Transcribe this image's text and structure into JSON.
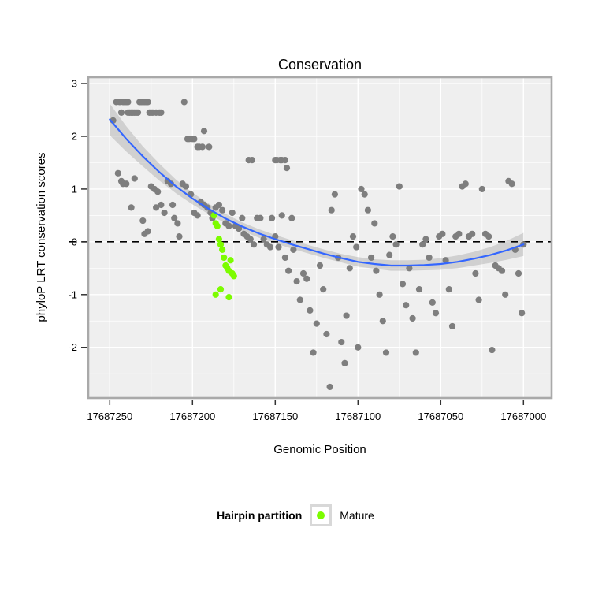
{
  "legend": {
    "title": "Hairpin partition",
    "entries": [
      {
        "label": "Mature",
        "color": "#7cfc00"
      }
    ]
  },
  "chart_data": {
    "type": "scatter",
    "title": "Conservation",
    "xlabel": "Genomic Position",
    "ylabel": "phyloP LRT conservation scores",
    "x_reversed": true,
    "grid": true,
    "xlim": [
      17687263,
      17686983
    ],
    "ylim": [
      -2.96,
      3.12
    ],
    "x_ticks": [
      17687250,
      17687200,
      17687150,
      17687100,
      17687050,
      17687000
    ],
    "x_tick_labels": [
      "17687250",
      "17687200",
      "17687150",
      "17687100",
      "17687050",
      "17687000"
    ],
    "x_minor": [
      17687225,
      17687175,
      17687125,
      17687075,
      17687025
    ],
    "y_ticks": [
      3,
      2,
      1,
      0,
      -1,
      -2
    ],
    "y_tick_labels": [
      "3",
      "2",
      "1",
      "0",
      "-1",
      "-2"
    ],
    "y_minor": [
      2.5,
      1.5,
      0.5,
      -0.5,
      -1.5,
      -2.5
    ],
    "reference_line": {
      "y": 0,
      "style": "dashed",
      "color": "#000000"
    },
    "colors": {
      "panel_bg": "#efefef",
      "grid": "#ffffff",
      "border": "#a9a9a9",
      "band": "#9e9e9e",
      "line": "#3366ff",
      "point_gray": "#7e7e7e",
      "point_green": "#7cfc00"
    },
    "series": [
      {
        "name": "hairpin",
        "label": "",
        "color": "#7e7e7e",
        "points": [
          [
            17687246,
            2.65
          ],
          [
            17687244,
            2.65
          ],
          [
            17687242,
            2.65
          ],
          [
            17687241,
            2.65
          ],
          [
            17687240,
            2.65
          ],
          [
            17687239,
            2.65
          ],
          [
            17687232,
            2.65
          ],
          [
            17687231,
            2.65
          ],
          [
            17687230,
            2.65
          ],
          [
            17687229,
            2.65
          ],
          [
            17687228,
            2.65
          ],
          [
            17687227,
            2.65
          ],
          [
            17687205,
            2.65
          ],
          [
            17687243,
            2.45
          ],
          [
            17687239,
            2.45
          ],
          [
            17687238,
            2.45
          ],
          [
            17687237,
            2.45
          ],
          [
            17687236,
            2.45
          ],
          [
            17687235,
            2.45
          ],
          [
            17687234,
            2.45
          ],
          [
            17687233,
            2.45
          ],
          [
            17687226,
            2.45
          ],
          [
            17687225,
            2.45
          ],
          [
            17687224,
            2.45
          ],
          [
            17687222,
            2.45
          ],
          [
            17687220,
            2.45
          ],
          [
            17687219,
            2.45
          ],
          [
            17687248,
            2.3
          ],
          [
            17687245,
            1.3
          ],
          [
            17687243,
            1.15
          ],
          [
            17687242,
            1.1
          ],
          [
            17687240,
            1.1
          ],
          [
            17687237,
            0.65
          ],
          [
            17687235,
            1.2
          ],
          [
            17687230,
            0.4
          ],
          [
            17687229,
            0.15
          ],
          [
            17687227,
            0.2
          ],
          [
            17687225,
            1.05
          ],
          [
            17687223,
            1.0
          ],
          [
            17687221,
            0.95
          ],
          [
            17687222,
            0.65
          ],
          [
            17687219,
            0.7
          ],
          [
            17687217,
            0.55
          ],
          [
            17687215,
            1.15
          ],
          [
            17687213,
            1.1
          ],
          [
            17687212,
            0.7
          ],
          [
            17687211,
            0.45
          ],
          [
            17687209,
            0.35
          ],
          [
            17687208,
            0.1
          ],
          [
            17687203,
            1.95
          ],
          [
            17687202,
            1.95
          ],
          [
            17687200,
            1.95
          ],
          [
            17687199,
            1.95
          ],
          [
            17687197,
            1.8
          ],
          [
            17687196,
            1.8
          ],
          [
            17687194,
            1.8
          ],
          [
            17687193,
            2.1
          ],
          [
            17687190,
            1.8
          ],
          [
            17687206,
            1.1
          ],
          [
            17687204,
            1.05
          ],
          [
            17687201,
            0.9
          ],
          [
            17687199,
            0.55
          ],
          [
            17687197,
            0.5
          ],
          [
            17687195,
            0.75
          ],
          [
            17687193,
            0.7
          ],
          [
            17687191,
            0.65
          ],
          [
            17687189,
            0.55
          ],
          [
            17687188,
            0.45
          ],
          [
            17687186,
            0.65
          ],
          [
            17687184,
            0.7
          ],
          [
            17687182,
            0.6
          ],
          [
            17687180,
            0.35
          ],
          [
            17687178,
            0.3
          ],
          [
            17687176,
            0.55
          ],
          [
            17687174,
            0.3
          ],
          [
            17687172,
            0.25
          ],
          [
            17687170,
            0.45
          ],
          [
            17687169,
            0.15
          ],
          [
            17687167,
            0.1
          ],
          [
            17687165,
            0.05
          ],
          [
            17687163,
            -0.05
          ],
          [
            17687161,
            0.45
          ],
          [
            17687159,
            0.45
          ],
          [
            17687157,
            0.05
          ],
          [
            17687155,
            -0.05
          ],
          [
            17687153,
            -0.1
          ],
          [
            17687166,
            1.55
          ],
          [
            17687164,
            1.55
          ],
          [
            17687150,
            1.55
          ],
          [
            17687149,
            1.55
          ],
          [
            17687147,
            1.55
          ],
          [
            17687146,
            1.55
          ],
          [
            17687144,
            1.55
          ],
          [
            17687143,
            1.4
          ],
          [
            17687152,
            0.45
          ],
          [
            17687150,
            0.1
          ],
          [
            17687148,
            -0.1
          ],
          [
            17687146,
            0.5
          ],
          [
            17687144,
            -0.3
          ],
          [
            17687142,
            -0.55
          ],
          [
            17687140,
            0.45
          ],
          [
            17687139,
            -0.15
          ],
          [
            17687137,
            -0.75
          ],
          [
            17687135,
            -1.1
          ],
          [
            17687133,
            -0.6
          ],
          [
            17687131,
            -0.7
          ],
          [
            17687129,
            -1.3
          ],
          [
            17687127,
            -2.1
          ],
          [
            17687125,
            -1.55
          ],
          [
            17687123,
            -0.45
          ],
          [
            17687121,
            -0.9
          ],
          [
            17687119,
            -1.75
          ],
          [
            17687117,
            -2.75
          ],
          [
            17687116,
            0.6
          ],
          [
            17687114,
            0.9
          ],
          [
            17687112,
            -0.3
          ],
          [
            17687110,
            -1.9
          ],
          [
            17687108,
            -2.3
          ],
          [
            17687107,
            -1.4
          ],
          [
            17687105,
            -0.5
          ],
          [
            17687103,
            0.1
          ],
          [
            17687101,
            -0.1
          ],
          [
            17687100,
            -2.0
          ],
          [
            17687098,
            1.0
          ],
          [
            17687096,
            0.9
          ],
          [
            17687094,
            0.6
          ],
          [
            17687092,
            -0.3
          ],
          [
            17687090,
            0.35
          ],
          [
            17687089,
            -0.55
          ],
          [
            17687087,
            -1.0
          ],
          [
            17687085,
            -1.5
          ],
          [
            17687083,
            -2.1
          ],
          [
            17687081,
            -0.25
          ],
          [
            17687079,
            0.1
          ],
          [
            17687077,
            -0.05
          ],
          [
            17687075,
            1.05
          ],
          [
            17687073,
            -0.8
          ],
          [
            17687071,
            -1.2
          ],
          [
            17687069,
            -0.5
          ],
          [
            17687067,
            -1.45
          ],
          [
            17687065,
            -2.1
          ],
          [
            17687063,
            -0.9
          ],
          [
            17687061,
            -0.05
          ],
          [
            17687059,
            0.05
          ],
          [
            17687057,
            -0.3
          ],
          [
            17687055,
            -1.15
          ],
          [
            17687053,
            -1.35
          ],
          [
            17687051,
            0.1
          ],
          [
            17687049,
            0.15
          ],
          [
            17687047,
            -0.35
          ],
          [
            17687045,
            -0.9
          ],
          [
            17687043,
            -1.6
          ],
          [
            17687041,
            0.1
          ],
          [
            17687039,
            0.15
          ],
          [
            17687037,
            1.05
          ],
          [
            17687035,
            1.1
          ],
          [
            17687033,
            0.1
          ],
          [
            17687031,
            0.15
          ],
          [
            17687029,
            -0.6
          ],
          [
            17687027,
            -1.1
          ],
          [
            17687025,
            1.0
          ],
          [
            17687023,
            0.15
          ],
          [
            17687021,
            0.1
          ],
          [
            17687019,
            -2.05
          ],
          [
            17687017,
            -0.45
          ],
          [
            17687015,
            -0.5
          ],
          [
            17687013,
            -0.55
          ],
          [
            17687011,
            -1.0
          ],
          [
            17687009,
            1.15
          ],
          [
            17687007,
            1.1
          ],
          [
            17687005,
            -0.15
          ],
          [
            17687003,
            -0.6
          ],
          [
            17687001,
            -1.35
          ],
          [
            17687000,
            -0.05
          ]
        ]
      },
      {
        "name": "mature",
        "label": "Mature",
        "color": "#7cfc00",
        "points": [
          [
            17687187,
            0.5
          ],
          [
            17687186,
            0.35
          ],
          [
            17687185,
            0.3
          ],
          [
            17687184,
            0.05
          ],
          [
            17687183,
            -0.05
          ],
          [
            17687183,
            -0.9
          ],
          [
            17687182,
            -0.15
          ],
          [
            17687181,
            -0.3
          ],
          [
            17687180,
            -0.45
          ],
          [
            17687179,
            -0.5
          ],
          [
            17687178,
            -0.55
          ],
          [
            17687178,
            -1.05
          ],
          [
            17687177,
            -0.35
          ],
          [
            17687176,
            -0.6
          ],
          [
            17687175,
            -0.65
          ],
          [
            17687186,
            -1.0
          ]
        ]
      }
    ],
    "smooth": {
      "x": [
        17687250,
        17687240,
        17687230,
        17687220,
        17687210,
        17687200,
        17687190,
        17687180,
        17687170,
        17687160,
        17687150,
        17687140,
        17687130,
        17687120,
        17687110,
        17687100,
        17687090,
        17687080,
        17687070,
        17687060,
        17687050,
        17687040,
        17687030,
        17687020,
        17687010,
        17687000
      ],
      "y": [
        2.32,
        1.95,
        1.62,
        1.32,
        1.05,
        0.82,
        0.62,
        0.44,
        0.29,
        0.16,
        0.05,
        -0.05,
        -0.14,
        -0.23,
        -0.31,
        -0.38,
        -0.42,
        -0.45,
        -0.45,
        -0.44,
        -0.42,
        -0.38,
        -0.32,
        -0.25,
        -0.16,
        -0.05
      ],
      "ci": [
        0.3,
        0.24,
        0.19,
        0.16,
        0.13,
        0.11,
        0.1,
        0.09,
        0.08,
        0.08,
        0.08,
        0.08,
        0.08,
        0.08,
        0.08,
        0.09,
        0.09,
        0.1,
        0.1,
        0.1,
        0.11,
        0.12,
        0.13,
        0.15,
        0.18,
        0.22
      ]
    }
  }
}
